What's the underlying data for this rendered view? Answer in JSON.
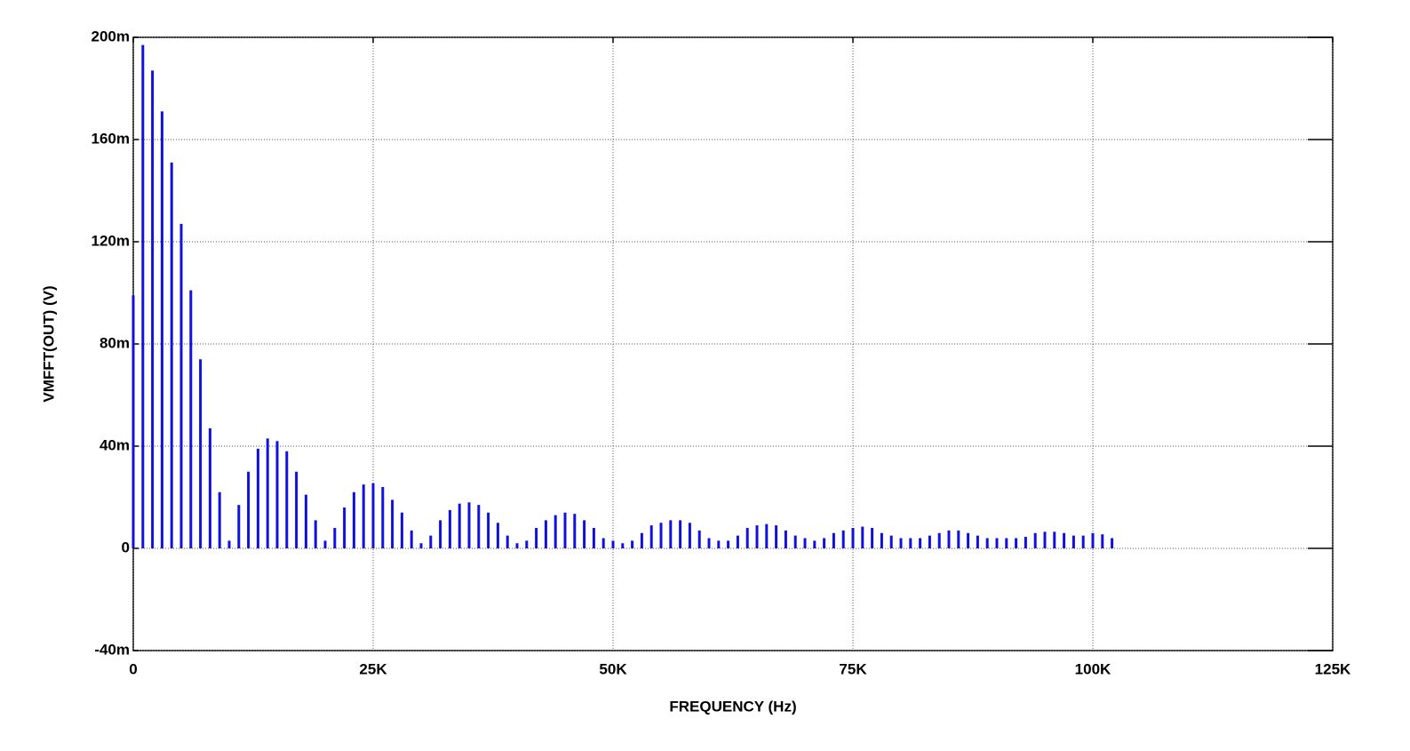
{
  "chart_data": {
    "type": "stem",
    "xlabel": "FREQUENCY  (Hz)",
    "ylabel": "VMFFT(OUT)  (V)",
    "xlim": [
      0,
      125000
    ],
    "ylim": [
      -0.04,
      0.2
    ],
    "xticks": [
      0,
      {
        "value": 25000,
        "label": "25K"
      },
      {
        "value": 50000,
        "label": "50K"
      },
      {
        "value": 75000,
        "label": "75K"
      },
      {
        "value": 100000,
        "label": "100K"
      },
      {
        "value": 125000,
        "label": "125K"
      }
    ],
    "yticks": [
      {
        "value": -0.04,
        "label": "-40m"
      },
      0,
      {
        "value": 0.04,
        "label": "40m"
      },
      {
        "value": 0.08,
        "label": "80m"
      },
      {
        "value": 0.12,
        "label": "120m"
      },
      {
        "value": 0.16,
        "label": "160m"
      },
      {
        "value": 0.2,
        "label": "200m"
      }
    ],
    "grid": true,
    "series": [
      {
        "color": "#1010e0",
        "x": [
          0,
          1000,
          2000,
          3000,
          4000,
          5000,
          6000,
          7000,
          8000,
          9000,
          10000,
          11000,
          12000,
          13000,
          14000,
          15000,
          16000,
          17000,
          18000,
          19000,
          20000,
          21000,
          22000,
          23000,
          24000,
          25000,
          26000,
          27000,
          28000,
          29000,
          30000,
          31000,
          32000,
          33000,
          34000,
          35000,
          36000,
          37000,
          38000,
          39000,
          40000,
          41000,
          42000,
          43000,
          44000,
          45000,
          46000,
          47000,
          48000,
          49000,
          50000,
          51000,
          52000,
          53000,
          54000,
          55000,
          56000,
          57000,
          58000,
          59000,
          60000,
          61000,
          62000,
          63000,
          64000,
          65000,
          66000,
          67000,
          68000,
          69000,
          70000,
          71000,
          72000,
          73000,
          74000,
          75000,
          76000,
          77000,
          78000,
          79000,
          80000,
          81000,
          82000,
          83000,
          84000,
          85000,
          86000,
          87000,
          88000,
          89000,
          90000,
          91000,
          92000,
          93000,
          94000,
          95000,
          96000,
          97000,
          98000,
          99000,
          100000,
          101000,
          102000
        ],
        "values": [
          0.099,
          0.197,
          0.187,
          0.171,
          0.151,
          0.127,
          0.101,
          0.074,
          0.047,
          0.022,
          0.003,
          0.017,
          0.03,
          0.039,
          0.043,
          0.042,
          0.038,
          0.03,
          0.021,
          0.011,
          0.003,
          0.008,
          0.016,
          0.022,
          0.025,
          0.0255,
          0.024,
          0.019,
          0.014,
          0.007,
          0.002,
          0.005,
          0.011,
          0.015,
          0.0175,
          0.018,
          0.017,
          0.014,
          0.01,
          0.005,
          0.002,
          0.003,
          0.008,
          0.011,
          0.013,
          0.014,
          0.0135,
          0.011,
          0.008,
          0.004,
          0.003,
          0.002,
          0.003,
          0.006,
          0.009,
          0.01,
          0.011,
          0.011,
          0.01,
          0.007,
          0.004,
          0.003,
          0.003,
          0.005,
          0.008,
          0.009,
          0.0095,
          0.009,
          0.007,
          0.005,
          0.004,
          0.003,
          0.004,
          0.006,
          0.007,
          0.008,
          0.0085,
          0.008,
          0.006,
          0.005,
          0.004,
          0.004,
          0.004,
          0.005,
          0.006,
          0.007,
          0.007,
          0.006,
          0.005,
          0.004,
          0.004,
          0.004,
          0.004,
          0.0045,
          0.006,
          0.0065,
          0.0065,
          0.006,
          0.005,
          0.005,
          0.006,
          0.0055,
          0.004
        ]
      }
    ]
  }
}
